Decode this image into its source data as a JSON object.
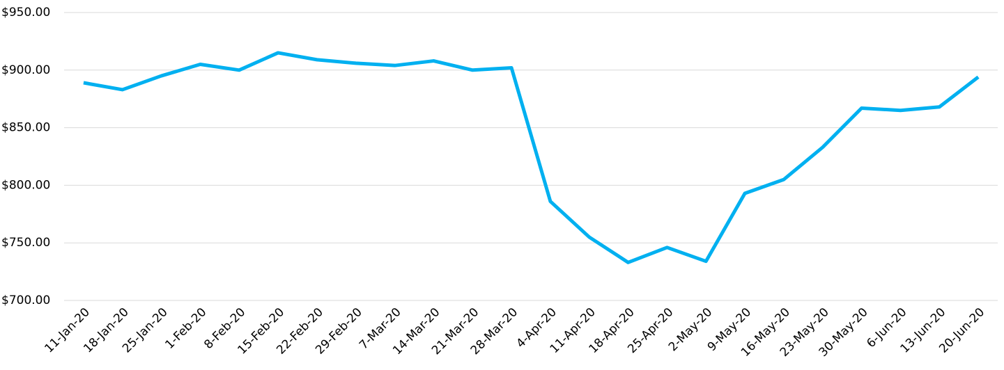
{
  "chart_data": {
    "type": "line",
    "categories": [
      "11-Jan-20",
      "18-Jan-20",
      "25-Jan-20",
      "1-Feb-20",
      "8-Feb-20",
      "15-Feb-20",
      "22-Feb-20",
      "29-Feb-20",
      "7-Mar-20",
      "14-Mar-20",
      "21-Mar-20",
      "28-Mar-20",
      "4-Apr-20",
      "11-Apr-20",
      "18-Apr-20",
      "25-Apr-20",
      "2-May-20",
      "9-May-20",
      "16-May-20",
      "23-May-20",
      "30-May-20",
      "6-Jun-20",
      "13-Jun-20",
      "20-Jun-20"
    ],
    "values": [
      889,
      883,
      895,
      905,
      900,
      915,
      909,
      906,
      904,
      908,
      900,
      902,
      786,
      755,
      733,
      746,
      734,
      793,
      805,
      833,
      867,
      865,
      868,
      894
    ],
    "color": "#00b0f0",
    "ylim": [
      700,
      950
    ],
    "yticks": [
      {
        "value": 700,
        "label": "$700.00"
      },
      {
        "value": 750,
        "label": "$750.00"
      },
      {
        "value": 800,
        "label": "$800.00"
      },
      {
        "value": 850,
        "label": "$850.00"
      },
      {
        "value": 900,
        "label": "$900.00"
      },
      {
        "value": 950,
        "label": "$950.00"
      }
    ],
    "grid": true
  }
}
